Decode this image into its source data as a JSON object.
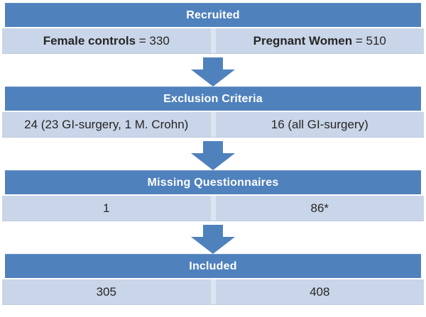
{
  "colors": {
    "header_bg": "#4f81bd",
    "cell_bg": "#c9d5e8",
    "divider": "#dde5f1",
    "arrow": "#4f81bd",
    "header_text": "#ffffff",
    "cell_text": "#262626"
  },
  "chart_type": "flowchart",
  "sections": [
    {
      "title": "Recruited",
      "left": {
        "bold": "Female controls",
        "text": " = 330"
      },
      "right": {
        "bold": "Pregnant Women",
        "text": " = 510"
      }
    },
    {
      "title": "Exclusion Criteria",
      "left": {
        "bold": "",
        "text": "24 (23 GI-surgery, 1 M. Crohn)"
      },
      "right": {
        "bold": "",
        "text": "16 (all GI-surgery)"
      }
    },
    {
      "title": "Missing Questionnaires",
      "left": {
        "bold": "",
        "text": "1"
      },
      "right": {
        "bold": "",
        "text": "86*"
      }
    },
    {
      "title": "Included",
      "left": {
        "bold": "",
        "text": "305"
      },
      "right": {
        "bold": "",
        "text": "408"
      }
    }
  ]
}
